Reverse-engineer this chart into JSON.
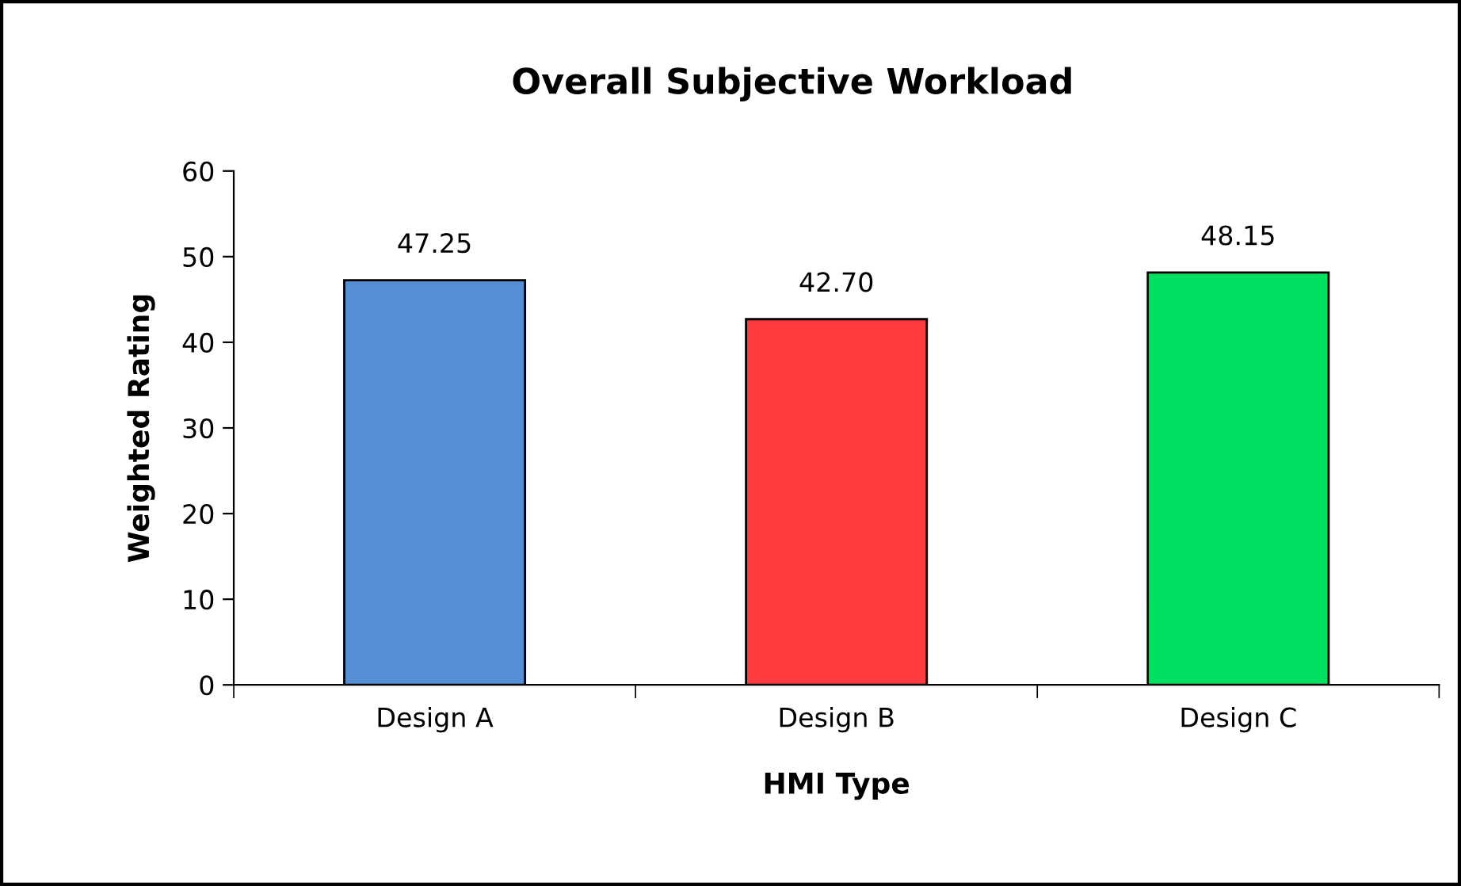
{
  "chart_data": {
    "type": "bar",
    "title": "Overall Subjective Workload",
    "xlabel": "HMI Type",
    "ylabel": "Weighted Rating",
    "categories": [
      "Design A",
      "Design B",
      "Design C"
    ],
    "values": [
      47.25,
      42.7,
      48.15
    ],
    "value_labels": [
      "47.25",
      "42.70",
      "48.15"
    ],
    "colors": [
      "#558ed5",
      "#ff3b3f",
      "#00e060"
    ],
    "ylim": [
      0,
      60
    ],
    "yticks": [
      0,
      10,
      20,
      30,
      40,
      50,
      60
    ],
    "grid": false,
    "legend": false
  }
}
